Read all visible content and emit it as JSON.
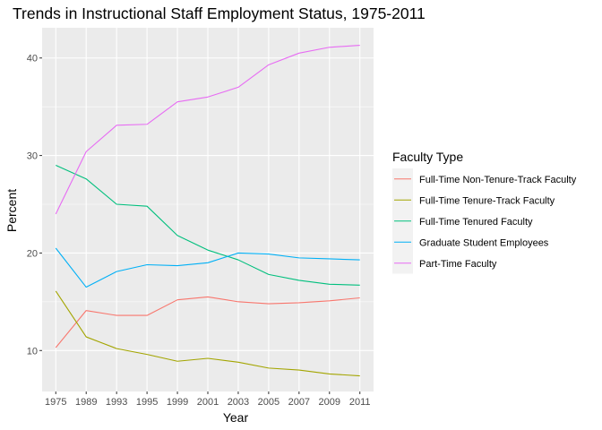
{
  "chart_data": {
    "type": "line",
    "title": "Trends in Instructional Staff Employment Status, 1975-2011",
    "xlabel": "Year",
    "ylabel": "Percent",
    "categories": [
      "1975",
      "1989",
      "1993",
      "1995",
      "1999",
      "2001",
      "2003",
      "2005",
      "2007",
      "2009",
      "2011"
    ],
    "yticks": [
      10,
      20,
      30,
      40
    ],
    "ylim": [
      5.8,
      43.1
    ],
    "grid": true,
    "legend": {
      "title": "Faculty Type",
      "position": "right"
    },
    "series": [
      {
        "name": "Full-Time Non-Tenure-Track Faculty",
        "color": "#F8766D",
        "values": [
          10.3,
          14.1,
          13.6,
          13.6,
          15.2,
          15.5,
          15.0,
          14.8,
          14.9,
          15.1,
          15.4
        ]
      },
      {
        "name": "Full-Time Tenure-Track Faculty",
        "color": "#A3A500",
        "values": [
          16.1,
          11.4,
          10.2,
          9.6,
          8.9,
          9.2,
          8.8,
          8.2,
          8.0,
          7.6,
          7.4
        ]
      },
      {
        "name": "Full-Time Tenured Faculty",
        "color": "#00BF7D",
        "values": [
          29.0,
          27.6,
          25.0,
          24.8,
          21.8,
          20.3,
          19.3,
          17.8,
          17.2,
          16.8,
          16.7
        ]
      },
      {
        "name": "Graduate Student Employees",
        "color": "#00B0F6",
        "values": [
          20.5,
          16.5,
          18.1,
          18.8,
          18.7,
          19.0,
          20.0,
          19.9,
          19.5,
          19.4,
          19.3
        ]
      },
      {
        "name": "Part-Time Faculty",
        "color": "#E76BF3",
        "values": [
          24.0,
          30.4,
          33.1,
          33.2,
          35.5,
          36.0,
          37.0,
          39.3,
          40.5,
          41.1,
          41.3
        ]
      }
    ]
  }
}
